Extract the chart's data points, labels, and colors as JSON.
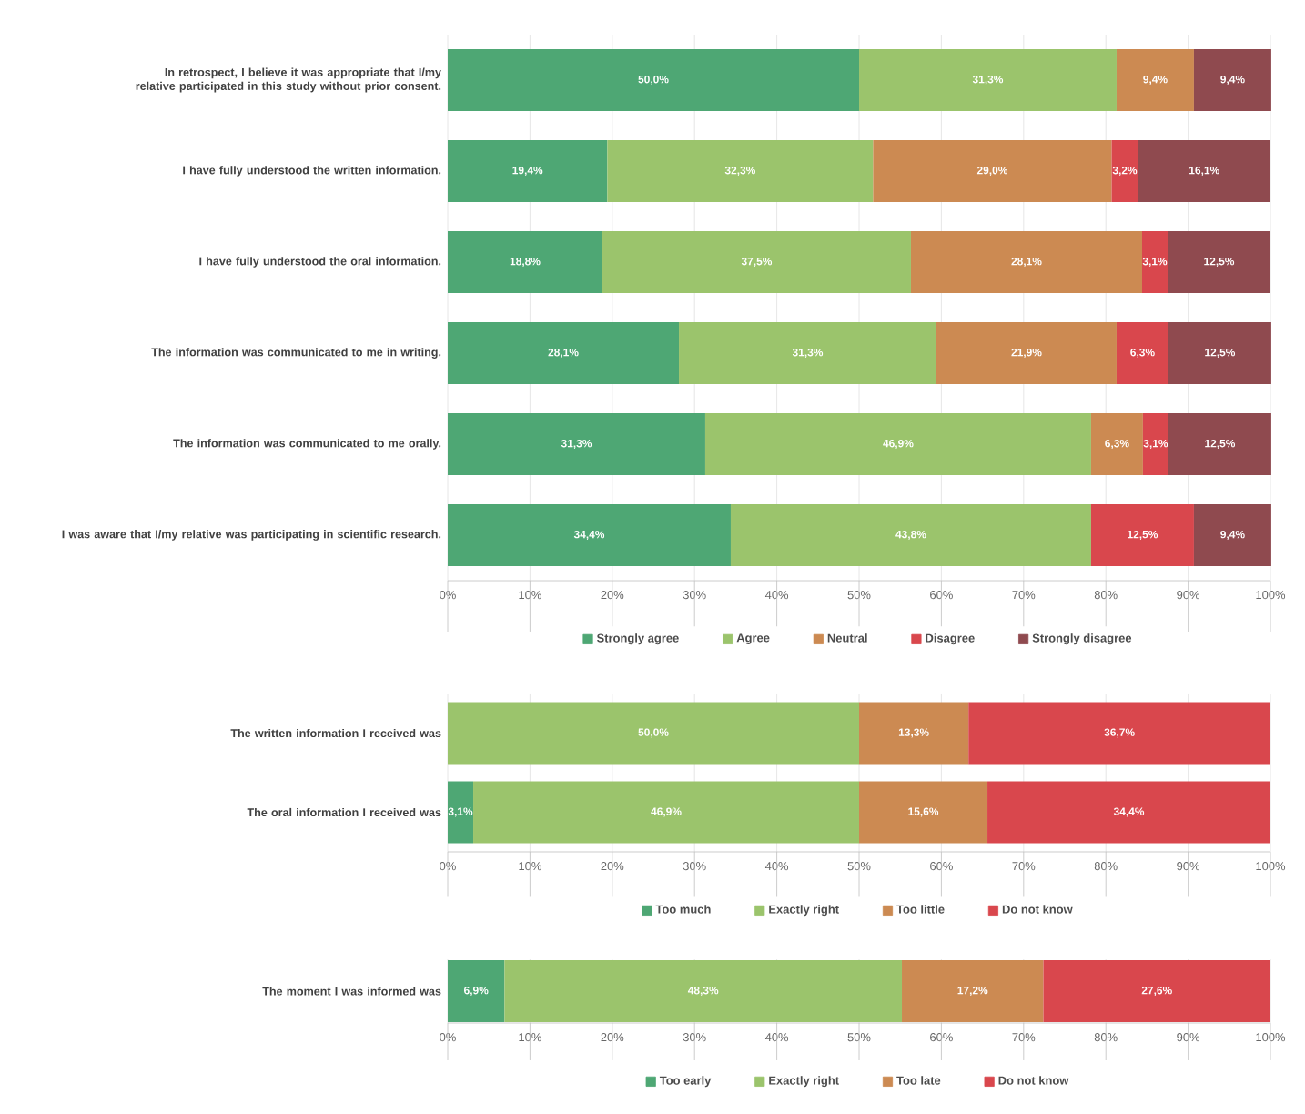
{
  "chart_data": [
    {
      "type": "bar",
      "orientation": "horizontal",
      "stacked": true,
      "grid": "x",
      "legend": "bottom",
      "xlim": [
        0,
        100
      ],
      "xticks": [
        {
          "value": 0,
          "label": "0%"
        },
        {
          "value": 10,
          "label": "10%"
        },
        {
          "value": 20,
          "label": "20%"
        },
        {
          "value": 30,
          "label": "30%"
        },
        {
          "value": 40,
          "label": "40%"
        },
        {
          "value": 50,
          "label": "50%"
        },
        {
          "value": 60,
          "label": "60%"
        },
        {
          "value": 70,
          "label": "70%"
        },
        {
          "value": 80,
          "label": "80%"
        },
        {
          "value": 90,
          "label": "90%"
        },
        {
          "value": 100,
          "label": "100%"
        }
      ],
      "categories": [
        "In retrospect, I believe it was appropriate that I/my relative participated in this study without prior consent.",
        "I have fully understood the written information.",
        "I have fully understood the oral information.",
        "The information was communicated to me in writing.",
        "The information was communicated to me orally.",
        "I was aware that I/my relative was participating in scientific research."
      ],
      "series": [
        {
          "name": "Strongly agree",
          "color": "#4ea774",
          "values": [
            50.0,
            19.4,
            18.8,
            28.1,
            31.3,
            34.4
          ],
          "value_labels": [
            "50,0%",
            "19,4%",
            "18,8%",
            "28,1%",
            "31,3%",
            "34,4%"
          ]
        },
        {
          "name": "Agree",
          "color": "#9bc46c",
          "values": [
            31.3,
            32.3,
            37.5,
            31.3,
            46.9,
            43.8
          ],
          "value_labels": [
            "31,3%",
            "32,3%",
            "37,5%",
            "31,3%",
            "46,9%",
            "43,8%"
          ]
        },
        {
          "name": "Neutral",
          "color": "#cc8a52",
          "values": [
            9.4,
            29.0,
            28.1,
            21.9,
            6.3,
            null
          ],
          "value_labels": [
            "9,4%",
            "29,0%",
            "28,1%",
            "21,9%",
            "6,3%",
            null
          ]
        },
        {
          "name": "Disagree",
          "color": "#d9474d",
          "values": [
            null,
            3.2,
            3.1,
            6.3,
            3.1,
            12.5
          ],
          "value_labels": [
            null,
            "3,2%",
            "3,1%",
            "6,3%",
            "3,1%",
            "12,5%"
          ]
        },
        {
          "name": "Strongly disagree",
          "color": "#8f4a4f",
          "values": [
            9.4,
            16.1,
            12.5,
            12.5,
            12.5,
            9.4
          ],
          "value_labels": [
            "9,4%",
            "16,1%",
            "12,5%",
            "12,5%",
            "12,5%",
            "9,4%"
          ]
        }
      ]
    },
    {
      "type": "bar",
      "orientation": "horizontal",
      "stacked": true,
      "grid": "x",
      "legend": "bottom",
      "xlim": [
        0,
        100
      ],
      "xticks": [
        {
          "value": 0,
          "label": "0%"
        },
        {
          "value": 10,
          "label": "10%"
        },
        {
          "value": 20,
          "label": "20%"
        },
        {
          "value": 30,
          "label": "30%"
        },
        {
          "value": 40,
          "label": "40%"
        },
        {
          "value": 50,
          "label": "50%"
        },
        {
          "value": 60,
          "label": "60%"
        },
        {
          "value": 70,
          "label": "70%"
        },
        {
          "value": 80,
          "label": "80%"
        },
        {
          "value": 90,
          "label": "90%"
        },
        {
          "value": 100,
          "label": "100%"
        }
      ],
      "categories": [
        "The written information I received was",
        "The oral information I received was"
      ],
      "series": [
        {
          "name": "Too much",
          "color": "#4ea774",
          "values": [
            null,
            3.1
          ],
          "value_labels": [
            null,
            "3,1%"
          ]
        },
        {
          "name": "Exactly right",
          "color": "#9bc46c",
          "values": [
            50.0,
            46.9
          ],
          "value_labels": [
            "50,0%",
            "46,9%"
          ]
        },
        {
          "name": "Too little",
          "color": "#cc8a52",
          "values": [
            13.3,
            15.6
          ],
          "value_labels": [
            "13,3%",
            "15,6%"
          ]
        },
        {
          "name": "Do not know",
          "color": "#d9474d",
          "values": [
            36.7,
            34.4
          ],
          "value_labels": [
            "36,7%",
            "34,4%"
          ]
        }
      ]
    },
    {
      "type": "bar",
      "orientation": "horizontal",
      "stacked": true,
      "grid": "x",
      "legend": "bottom",
      "xlim": [
        0,
        100
      ],
      "xticks": [
        {
          "value": 0,
          "label": "0%"
        },
        {
          "value": 10,
          "label": "10%"
        },
        {
          "value": 20,
          "label": "20%"
        },
        {
          "value": 30,
          "label": "30%"
        },
        {
          "value": 40,
          "label": "40%"
        },
        {
          "value": 50,
          "label": "50%"
        },
        {
          "value": 60,
          "label": "60%"
        },
        {
          "value": 70,
          "label": "70%"
        },
        {
          "value": 80,
          "label": "80%"
        },
        {
          "value": 90,
          "label": "90%"
        },
        {
          "value": 100,
          "label": "100%"
        }
      ],
      "categories": [
        "The moment I was informed was"
      ],
      "series": [
        {
          "name": "Too early",
          "color": "#4ea774",
          "values": [
            6.9
          ],
          "value_labels": [
            "6,9%"
          ]
        },
        {
          "name": "Exactly right",
          "color": "#9bc46c",
          "values": [
            48.3
          ],
          "value_labels": [
            "48,3%"
          ]
        },
        {
          "name": "Too late",
          "color": "#cc8a52",
          "values": [
            17.2
          ],
          "value_labels": [
            "17,2%"
          ]
        },
        {
          "name": "Do not know",
          "color": "#d9474d",
          "values": [
            27.6
          ],
          "value_labels": [
            "27,6%"
          ]
        }
      ]
    }
  ]
}
